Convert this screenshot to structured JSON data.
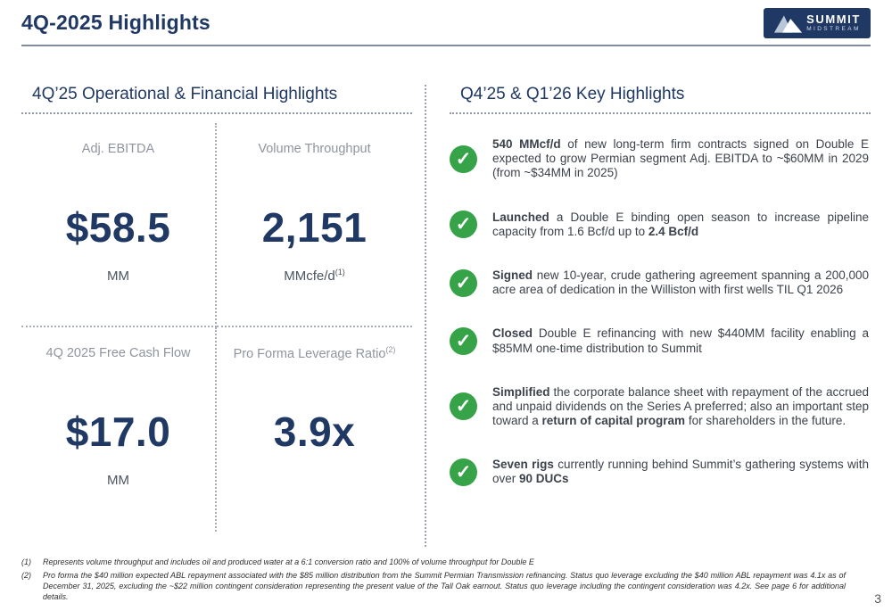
{
  "header": {
    "title": "4Q-2025 Highlights",
    "logo": {
      "line1": "SUMMIT",
      "line2": "MIDSTREAM"
    }
  },
  "left": {
    "heading": "4Q’25 Operational & Financial Highlights",
    "metrics": [
      {
        "label": "Adj. EBITDA",
        "value": "$58.5",
        "unit": "MM",
        "unit_sup": ""
      },
      {
        "label": "Volume Throughput",
        "value": "2,151",
        "unit": "MMcfe/d",
        "unit_sup": "(1)"
      },
      {
        "label": "4Q 2025 Free Cash Flow",
        "value": "$17.0",
        "unit": "MM",
        "unit_sup": ""
      },
      {
        "label": "Pro Forma Leverage Ratio",
        "label_sup": "(2)",
        "value": "3.9x",
        "unit": "",
        "unit_sup": ""
      }
    ]
  },
  "right": {
    "heading": "Q4’25 & Q1’26 Key Highlights",
    "bullets": [
      {
        "segments": [
          {
            "t": "540 MMcf/d",
            "b": true
          },
          {
            "t": " of new long-term firm contracts signed on Double E expected to grow Permian segment Adj. EBITDA to ~$60MM in 2029 (from ~$34MM in 2025)",
            "b": false
          }
        ]
      },
      {
        "segments": [
          {
            "t": "Launched",
            "b": true
          },
          {
            "t": " a Double E binding open season to increase pipeline capacity from 1.6 Bcf/d up to ",
            "b": false
          },
          {
            "t": "2.4 Bcf/d",
            "b": true
          }
        ]
      },
      {
        "segments": [
          {
            "t": "Signed",
            "b": true
          },
          {
            "t": " new 10-year, crude gathering agreement spanning a 200,000 acre area of dedication in the Williston with first wells TIL Q1 2026",
            "b": false
          }
        ]
      },
      {
        "segments": [
          {
            "t": "Closed",
            "b": true
          },
          {
            "t": " Double E refinancing with new $440MM facility enabling a $85MM one-time distribution to Summit",
            "b": false
          }
        ]
      },
      {
        "segments": [
          {
            "t": "Simplified",
            "b": true
          },
          {
            "t": " the corporate balance sheet with repayment of the accrued and unpaid dividends on the Series A preferred; also an important step toward a ",
            "b": false
          },
          {
            "t": "return of capital program",
            "b": true
          },
          {
            "t": " for shareholders in the future.",
            "b": false
          }
        ]
      },
      {
        "segments": [
          {
            "t": "Seven rigs",
            "b": true
          },
          {
            "t": " currently running behind Summit’s gathering systems with over ",
            "b": false
          },
          {
            "t": "90 DUCs",
            "b": true
          }
        ]
      }
    ]
  },
  "footnotes": [
    {
      "marker": "(1)",
      "text": "Represents volume throughput and includes oil and produced water at a 6:1 conversion ratio and 100% of volume throughput for Double E"
    },
    {
      "marker": "(2)",
      "text": "Pro forma the $40 million expected ABL repayment associated with the $85 million distribution from the Summit Permian Transmission refinancing. Status quo leverage excluding the $40 million ABL repayment was 4.1x as of December 31, 2025, excluding the ~$22 million contingent consideration representing the present value of the Tall Oak earnout. Status quo leverage including the contingent consideration was 4.2x. See page 6 for additional details."
    }
  ],
  "page_number": "3",
  "colors": {
    "navy": "#1F3864",
    "green": "#36A348",
    "label_gray": "#8F959E"
  },
  "icons": {
    "check": "check-icon",
    "mountain": "mountain-icon"
  }
}
